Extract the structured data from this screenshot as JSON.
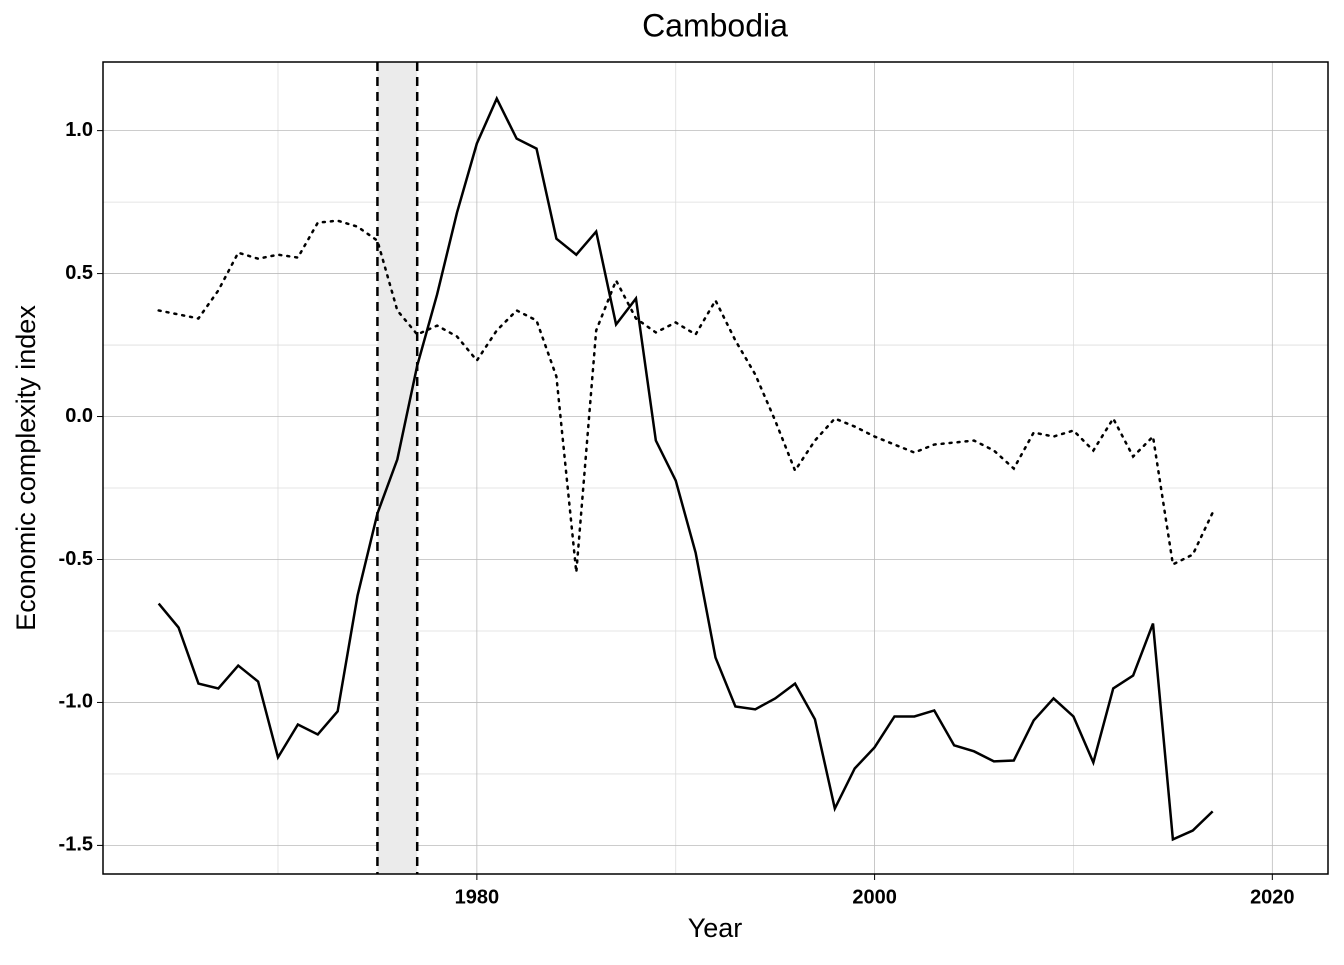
{
  "chart_data": {
    "type": "line",
    "title": "Cambodia",
    "xlabel": "Year",
    "ylabel": "Economic complexity index",
    "x": [
      1964,
      1965,
      1966,
      1967,
      1968,
      1969,
      1970,
      1971,
      1972,
      1973,
      1974,
      1975,
      1976,
      1977,
      1978,
      1979,
      1980,
      1981,
      1982,
      1983,
      1984,
      1985,
      1986,
      1987,
      1988,
      1989,
      1990,
      1991,
      1992,
      1993,
      1994,
      1995,
      1996,
      1997,
      1998,
      1999,
      2000,
      2001,
      2002,
      2003,
      2004,
      2005,
      2006,
      2007,
      2008,
      2009,
      2010,
      2011,
      2012,
      2013,
      2014,
      2015,
      2016,
      2017
    ],
    "series": [
      {
        "color": "#000000",
        "dash": "solid",
        "values": [
          -0.654,
          -0.738,
          -0.934,
          -0.951,
          -0.871,
          -0.927,
          -1.192,
          -1.077,
          -1.112,
          -1.031,
          -0.626,
          -0.339,
          -0.15,
          0.178,
          0.427,
          0.713,
          0.955,
          1.112,
          0.972,
          0.937,
          0.622,
          0.566,
          0.647,
          0.322,
          0.413,
          -0.084,
          -0.224,
          -0.476,
          -0.843,
          -1.014,
          -1.024,
          -0.986,
          -0.934,
          -1.059,
          -1.371,
          -1.231,
          -1.157,
          -1.049,
          -1.049,
          -1.028,
          -1.15,
          -1.171,
          -1.206,
          -1.203,
          -1.063,
          -0.986,
          -1.049,
          -1.21,
          -0.951,
          -0.906,
          -0.724,
          -1.479,
          -1.448,
          -1.381
        ]
      },
      {
        "color": "#000000",
        "dash": "dotted",
        "values": [
          0.371,
          0.357,
          0.343,
          0.441,
          0.573,
          0.552,
          0.566,
          0.556,
          0.678,
          0.685,
          0.664,
          0.615,
          0.371,
          0.287,
          0.318,
          0.28,
          0.196,
          0.301,
          0.371,
          0.336,
          0.14,
          -0.545,
          0.301,
          0.476,
          0.343,
          0.294,
          0.329,
          0.287,
          0.406,
          0.266,
          0.147,
          -0.014,
          -0.189,
          -0.084,
          -0.007,
          -0.035,
          -0.07,
          -0.098,
          -0.126,
          -0.098,
          -0.091,
          -0.084,
          -0.119,
          -0.182,
          -0.056,
          -0.07,
          -0.049,
          -0.119,
          -0.007,
          -0.14,
          -0.07,
          -0.517,
          -0.483,
          -0.336
        ]
      }
    ],
    "xlim": [
      1961.2,
      2022.8
    ],
    "ylim": [
      -1.6,
      1.24
    ],
    "xticks": [
      1980,
      2000,
      2020
    ],
    "yticks": [
      {
        "value": -1.5,
        "label": "-1.5"
      },
      {
        "value": -1.0,
        "label": "-1.0"
      },
      {
        "value": -0.5,
        "label": "-0.5"
      },
      {
        "value": 0,
        "label": "0.0"
      },
      {
        "value": 0.5,
        "label": "0.5"
      },
      {
        "value": 1.0,
        "label": "1.0"
      }
    ],
    "x_minor_ticks": [
      1970,
      1990,
      2010
    ],
    "y_minor_ticks": [
      -1.25,
      -0.75,
      -0.25,
      0.25,
      0.75
    ],
    "shaded_region": [
      1975,
      1977
    ],
    "shade_color": "#ebebeb",
    "grid": true
  }
}
